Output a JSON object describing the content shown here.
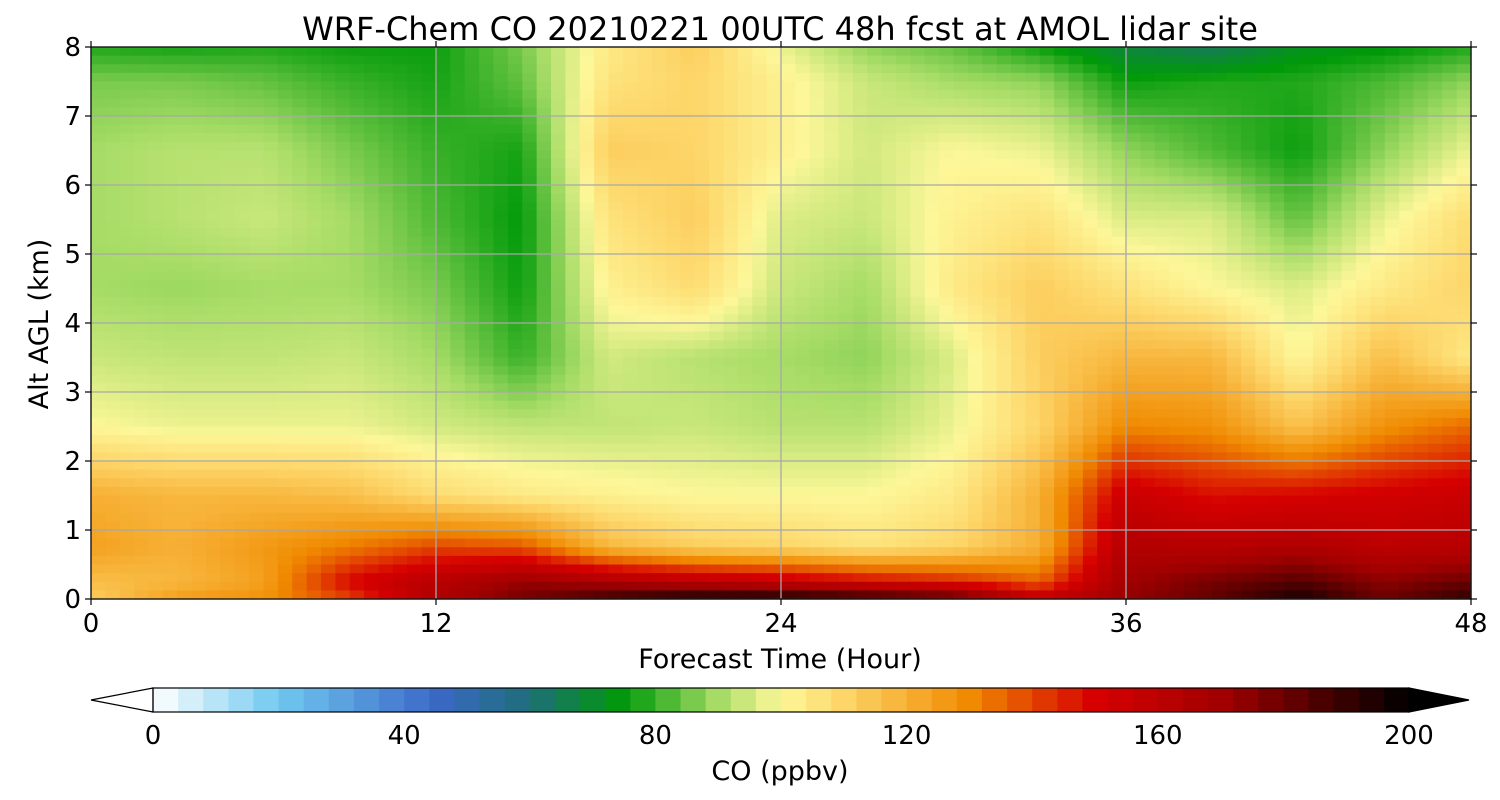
{
  "chart_data": {
    "type": "heatmap",
    "title": "WRF-Chem CO  20210221 00UTC 48h fcst at AMOL lidar site",
    "xlabel": "Forecast Time (Hour)",
    "ylabel": "Alt AGL (km)",
    "xlim": [
      0,
      48
    ],
    "ylim": [
      0,
      8
    ],
    "x_ticks": [
      0,
      12,
      24,
      36,
      48
    ],
    "y_ticks": [
      0,
      1,
      2,
      3,
      4,
      5,
      6,
      7,
      8
    ],
    "grid": true,
    "x": [
      0,
      3,
      6,
      9,
      12,
      15,
      18,
      21,
      24,
      27,
      30,
      33,
      36,
      39,
      42,
      45,
      48
    ],
    "y": [
      0,
      0.25,
      0.75,
      1.5,
      2.5,
      3.5,
      4.5,
      5.5,
      6.5,
      7.5,
      8
    ],
    "z": [
      [
        112,
        125,
        128,
        140,
        165,
        178,
        190,
        198,
        198,
        192,
        185,
        158,
        172,
        182,
        196,
        180,
        192
      ],
      [
        116,
        118,
        124,
        150,
        162,
        172,
        166,
        160,
        156,
        150,
        145,
        136,
        170,
        178,
        184,
        174,
        180
      ],
      [
        124,
        120,
        126,
        132,
        140,
        138,
        118,
        112,
        110,
        106,
        110,
        120,
        164,
        162,
        165,
        160,
        162
      ],
      [
        120,
        118,
        118,
        116,
        108,
        104,
        102,
        100,
        100,
        100,
        104,
        120,
        155,
        148,
        150,
        152,
        155
      ],
      [
        100,
        98,
        98,
        98,
        95,
        93,
        93,
        94,
        92,
        92,
        98,
        110,
        130,
        128,
        115,
        128,
        135
      ],
      [
        94,
        93,
        93,
        94,
        90,
        80,
        95,
        92,
        90,
        88,
        96,
        112,
        118,
        118,
        100,
        116,
        104
      ],
      [
        90,
        89,
        90,
        90,
        86,
        76,
        102,
        108,
        94,
        90,
        104,
        112,
        106,
        100,
        96,
        104,
        110
      ],
      [
        90,
        92,
        94,
        90,
        82,
        75,
        106,
        112,
        96,
        94,
        102,
        106,
        96,
        96,
        84,
        98,
        108
      ],
      [
        90,
        92,
        92,
        86,
        80,
        77,
        112,
        110,
        102,
        95,
        100,
        98,
        88,
        82,
        76,
        88,
        98
      ],
      [
        86,
        86,
        84,
        80,
        77,
        84,
        106,
        110,
        102,
        94,
        90,
        88,
        76,
        78,
        78,
        82,
        88
      ],
      [
        78,
        77,
        78,
        76,
        76,
        86,
        104,
        112,
        98,
        88,
        84,
        76,
        68,
        64,
        72,
        74,
        78
      ]
    ],
    "colorbar": {
      "label": "CO  (ppbv)",
      "min": 0,
      "max": 200,
      "ticks": [
        0,
        40,
        80,
        120,
        160,
        200
      ],
      "extend": "both",
      "under_color": "#ffffff",
      "over_color": "#000000",
      "stops": [
        {
          "value": 0,
          "color": "#ffffff"
        },
        {
          "value": 20,
          "color": "#70c8ef"
        },
        {
          "value": 45,
          "color": "#3b68c8"
        },
        {
          "value": 60,
          "color": "#1e6e78"
        },
        {
          "value": 75,
          "color": "#009a08"
        },
        {
          "value": 90,
          "color": "#a6dc66"
        },
        {
          "value": 100,
          "color": "#fdf799"
        },
        {
          "value": 110,
          "color": "#fdd568"
        },
        {
          "value": 130,
          "color": "#f08a00"
        },
        {
          "value": 150,
          "color": "#d60000"
        },
        {
          "value": 170,
          "color": "#a20000"
        },
        {
          "value": 185,
          "color": "#500000"
        },
        {
          "value": 200,
          "color": "#000000"
        }
      ]
    }
  }
}
